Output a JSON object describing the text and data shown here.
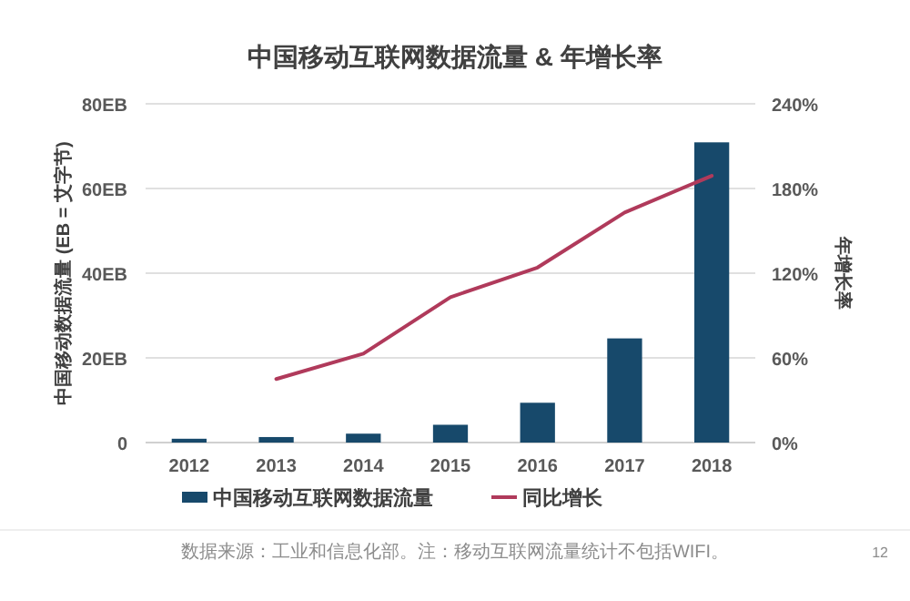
{
  "chart_data": {
    "type": "bar",
    "title": "中国移动互联网数据流量 & 年增长率",
    "categories": [
      "2012",
      "2013",
      "2014",
      "2015",
      "2016",
      "2017",
      "2018"
    ],
    "series": [
      {
        "name": "中国移动互联网数据流量",
        "color": "#17496b",
        "values": [
          0.9,
          1.3,
          2.1,
          4.2,
          9.4,
          24.6,
          70.9
        ]
      },
      {
        "name": "同比增长",
        "type": "line",
        "axis": "y2",
        "color": "#b03a5b",
        "values": [
          null,
          45,
          63,
          103,
          124,
          163,
          189
        ]
      }
    ],
    "ylabel": "中国移动数据流量 (EB = 艾字节)",
    "y2label": "年增长率",
    "ylim": [
      0,
      80
    ],
    "yticks": [
      {
        "value": 0,
        "label": "0"
      },
      {
        "value": 20,
        "label": "20EB"
      },
      {
        "value": 40,
        "label": "40EB"
      },
      {
        "value": 60,
        "label": "60EB"
      },
      {
        "value": 80,
        "label": "80EB"
      }
    ],
    "y2lim": [
      0,
      240
    ],
    "y2ticks": [
      {
        "value": 0,
        "label": "0%"
      },
      {
        "value": 60,
        "label": "60%"
      },
      {
        "value": 120,
        "label": "120%"
      },
      {
        "value": 180,
        "label": "180%"
      },
      {
        "value": 240,
        "label": "240%"
      }
    ],
    "grid": "y",
    "legend": "bottom",
    "marker": "none",
    "line_style": "solid",
    "annotations": [
      "数据来源：工业和信息化部。注：移动互联网流量统计不包括WIFI。",
      "12"
    ]
  }
}
